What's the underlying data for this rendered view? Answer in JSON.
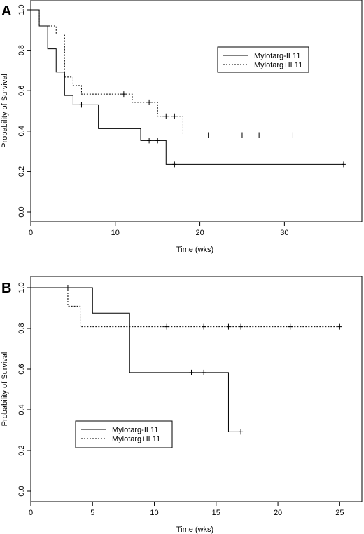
{
  "chart_data": [
    {
      "type": "line",
      "panel_label": "A",
      "xlabel": "Time (wks)",
      "ylabel": "Probability of Survival",
      "xlim": [
        0,
        38
      ],
      "ylim": [
        0,
        1
      ],
      "xticks": [
        "0",
        "10",
        "20",
        "30"
      ],
      "yticks": [
        "0.0",
        "0.2",
        "0.4",
        "0.6",
        "0.8",
        "1.0"
      ],
      "legend_position": "top-right",
      "series": [
        {
          "name": "Mylotarg-IL11",
          "style": "solid",
          "steps": [
            [
              0,
              1.0
            ],
            [
              1,
              0.92
            ],
            [
              2,
              0.807
            ],
            [
              3,
              0.692
            ],
            [
              4,
              0.576
            ],
            [
              5,
              0.53
            ],
            [
              8,
              0.412
            ],
            [
              13,
              0.353
            ],
            [
              16,
              0.235
            ],
            [
              37,
              0.235
            ]
          ],
          "censored": [
            [
              6,
              0.53
            ],
            [
              14,
              0.353
            ],
            [
              15,
              0.353
            ],
            [
              17,
              0.235
            ],
            [
              37,
              0.235
            ]
          ]
        },
        {
          "name": "Mylotarg+IL11",
          "style": "dotted",
          "steps": [
            [
              0,
              1.0
            ],
            [
              1,
              0.92
            ],
            [
              3,
              0.88
            ],
            [
              4,
              0.667
            ],
            [
              5,
              0.625
            ],
            [
              6,
              0.583
            ],
            [
              12,
              0.542
            ],
            [
              15,
              0.473
            ],
            [
              18,
              0.38
            ],
            [
              31,
              0.38
            ]
          ],
          "censored": [
            [
              11,
              0.583
            ],
            [
              14,
              0.542
            ],
            [
              16,
              0.473
            ],
            [
              17,
              0.473
            ],
            [
              21,
              0.38
            ],
            [
              25,
              0.38
            ],
            [
              27,
              0.38
            ],
            [
              31,
              0.38
            ]
          ]
        }
      ]
    },
    {
      "type": "line",
      "panel_label": "B",
      "xlabel": "Time (wks)",
      "ylabel": "Probability of Survival",
      "xlim": [
        0,
        26
      ],
      "ylim": [
        0,
        1
      ],
      "xticks": [
        "0",
        "5",
        "10",
        "15",
        "20",
        "25"
      ],
      "yticks": [
        "0.0",
        "0.2",
        "0.4",
        "0.6",
        "0.8",
        "1.0"
      ],
      "legend_position": "bottom-left",
      "series": [
        {
          "name": "Mylotarg-IL11",
          "style": "solid",
          "steps": [
            [
              0,
              1.0
            ],
            [
              5,
              0.875
            ],
            [
              8,
              0.583
            ],
            [
              16,
              0.292
            ],
            [
              17,
              0.292
            ]
          ],
          "censored": [
            [
              13,
              0.583
            ],
            [
              14,
              0.583
            ],
            [
              17,
              0.292
            ]
          ]
        },
        {
          "name": "Mylotarg+IL11",
          "style": "dotted",
          "steps": [
            [
              0,
              1.0
            ],
            [
              3,
              0.909
            ],
            [
              4,
              0.808
            ],
            [
              25,
              0.808
            ]
          ],
          "censored": [
            [
              3,
              1.0
            ],
            [
              11,
              0.808
            ],
            [
              14,
              0.808
            ],
            [
              16,
              0.808
            ],
            [
              17,
              0.808
            ],
            [
              21,
              0.808
            ],
            [
              25,
              0.808
            ]
          ]
        }
      ]
    }
  ]
}
